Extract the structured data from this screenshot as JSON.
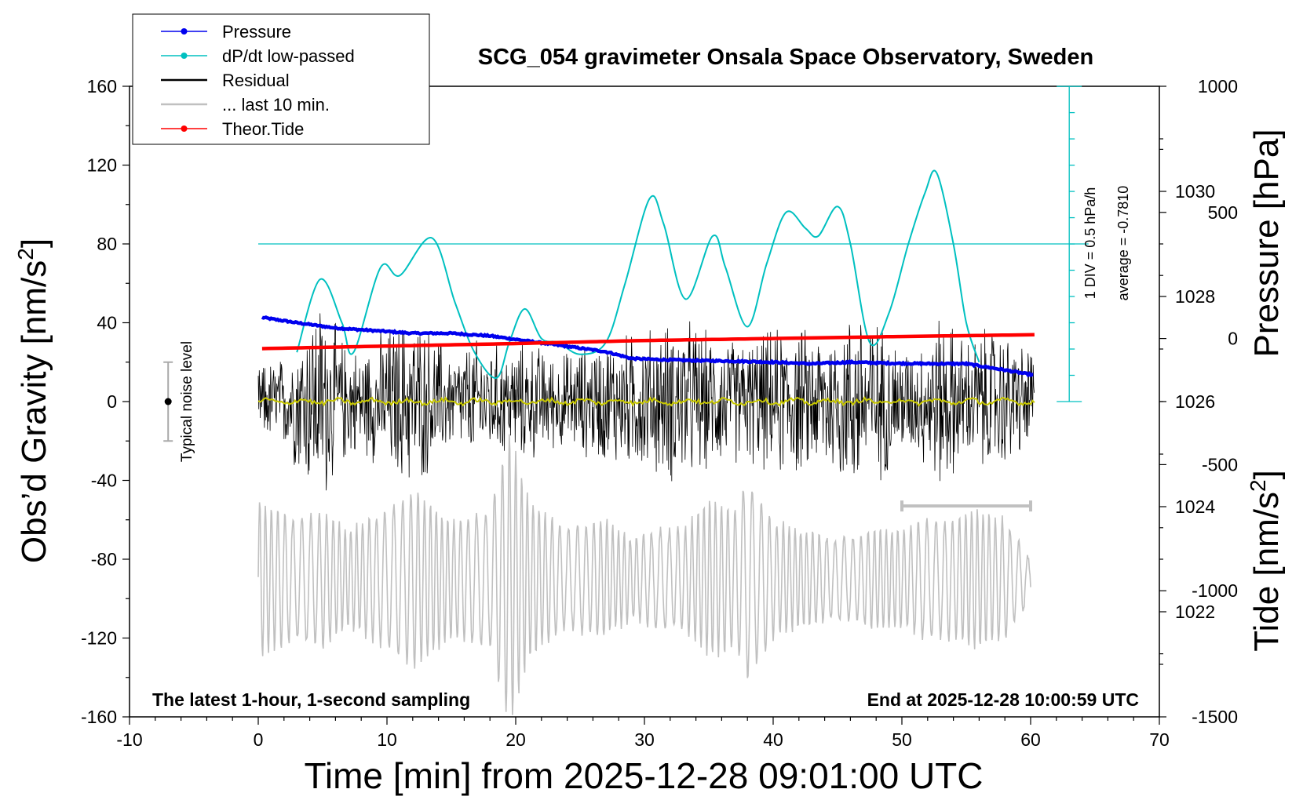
{
  "chart_data": {
    "type": "line",
    "title": "SCG_054 gravimeter Onsala Space Observatory, Sweden",
    "xlabel": "Time [min] from 2025-12-28 09:01:00 UTC",
    "xlim": [
      -10,
      70
    ],
    "xticks": [
      -10,
      0,
      10,
      20,
      30,
      40,
      50,
      60,
      70
    ],
    "left_axis": {
      "label_main": "Obs’d Gravity [nm/s",
      "label_sup": "2",
      "label_end": "]",
      "ylim": [
        -160,
        160
      ],
      "ticks": [
        160,
        120,
        80,
        40,
        0,
        -40,
        -80,
        -120,
        -160
      ]
    },
    "pressure_axis": {
      "label": "Pressure [hPa]",
      "ylim": [
        1020,
        1032
      ],
      "ticks": [
        1030,
        1028,
        1026,
        1024,
        1022
      ]
    },
    "tide_axis": {
      "label_main": "Tide [nm/s",
      "label_sup": "2",
      "label_end": "]",
      "ylim": [
        -1500,
        1000
      ],
      "ticks": [
        1000,
        500,
        0,
        -500,
        -1000,
        -1500
      ]
    },
    "dpdt_scale": {
      "line1": "1 DIV = 0.5 hPa/h",
      "line2": "average = -0.7810"
    },
    "noise_indicator": {
      "label": "Typical noise level",
      "x": -7,
      "center": 0,
      "range": [
        -20,
        20
      ]
    },
    "ten_minute_bar": {
      "x_range": [
        50,
        60
      ],
      "y": -53
    },
    "legend": {
      "position": "top-left",
      "entries": [
        {
          "label": "Pressure",
          "color": "#0000ee",
          "marker": true
        },
        {
          "label": "dP/dt low-passed",
          "color": "#00c0c0",
          "marker": true
        },
        {
          "label": "Residual",
          "color": "#000000",
          "marker": false
        },
        {
          "label": "... last 10 min.",
          "color": "#c0c0c0",
          "marker": false
        },
        {
          "label": "Theor.Tide",
          "color": "#ff0000",
          "marker": true
        }
      ]
    },
    "footer_left": "The latest 1-hour, 1-second sampling",
    "footer_right": "End at 2025-12-28 10:00:59 UTC",
    "series": [
      {
        "name": "Pressure",
        "axis": "pressure",
        "color": "#0000ee",
        "x": [
          0.3,
          3,
          6,
          9,
          12,
          15,
          18,
          21,
          24,
          27,
          29,
          31,
          34,
          37,
          40,
          43,
          46,
          49,
          52,
          55,
          58,
          60.3
        ],
        "y": [
          1027.6,
          1027.5,
          1027.4,
          1027.35,
          1027.3,
          1027.3,
          1027.25,
          1027.15,
          1027.05,
          1026.95,
          1026.82,
          1026.8,
          1026.78,
          1026.77,
          1026.75,
          1026.72,
          1026.75,
          1026.73,
          1026.72,
          1026.72,
          1026.6,
          1026.5
        ]
      },
      {
        "name": "dP/dt low-passed",
        "axis": "left",
        "color": "#00c0c0",
        "x": [
          3.0,
          4.8,
          6.5,
          7.4,
          9.5,
          11.0,
          13.5,
          15.3,
          16.8,
          18.5,
          19.5,
          20.7,
          22.0,
          23.3,
          25.0,
          27.0,
          28.5,
          30.4,
          31.5,
          33.2,
          35.3,
          36.3,
          38.0,
          39.5,
          41.0,
          42.5,
          43.5,
          45.0,
          46.0,
          47.5,
          49.0,
          50.5,
          51.8,
          52.7,
          54.0,
          55.0,
          56.0
        ],
        "y": [
          25,
          62,
          40,
          25,
          68,
          64,
          83,
          50,
          25,
          12,
          30,
          47,
          32,
          30,
          24,
          30,
          60,
          103,
          90,
          52,
          84,
          68,
          38,
          70,
          96,
          88,
          84,
          99,
          80,
          30,
          45,
          80,
          106,
          116,
          80,
          40,
          20
        ]
      },
      {
        "name": "Theor.Tide",
        "axis": "tide",
        "color": "#ff0000",
        "x": [
          0.3,
          10,
          20,
          30,
          40,
          50,
          60.3
        ],
        "y": [
          -40,
          -30,
          -20,
          -8,
          0,
          8,
          15
        ]
      }
    ],
    "residual_envelope": {
      "x": [
        0,
        2,
        3.5,
        5,
        6.5,
        8,
        10,
        12,
        13.5,
        15,
        17,
        19.5,
        21,
        23,
        25,
        27,
        29,
        31,
        33,
        35,
        37.5,
        39,
        41,
        43,
        45,
        47,
        49,
        51,
        53,
        55,
        57,
        60
      ],
      "amp": [
        20,
        25,
        45,
        58,
        35,
        28,
        42,
        48,
        40,
        26,
        34,
        30,
        34,
        26,
        30,
        35,
        38,
        42,
        48,
        38,
        34,
        38,
        43,
        40,
        45,
        55,
        38,
        28,
        50,
        35,
        42,
        30
      ]
    },
    "last10_wave": {
      "x": [
        0,
        3,
        5,
        7,
        10,
        12,
        15,
        18,
        19.5,
        21,
        24,
        27,
        29,
        31,
        33,
        35,
        37,
        38,
        40,
        42,
        45,
        48,
        50,
        52,
        54,
        56,
        58,
        60
      ],
      "amp": [
        40,
        30,
        35,
        25,
        35,
        45,
        30,
        35,
        75,
        40,
        25,
        30,
        20,
        25,
        25,
        40,
        35,
        50,
        30,
        25,
        20,
        25,
        25,
        30,
        30,
        35,
        30,
        10
      ]
    }
  }
}
